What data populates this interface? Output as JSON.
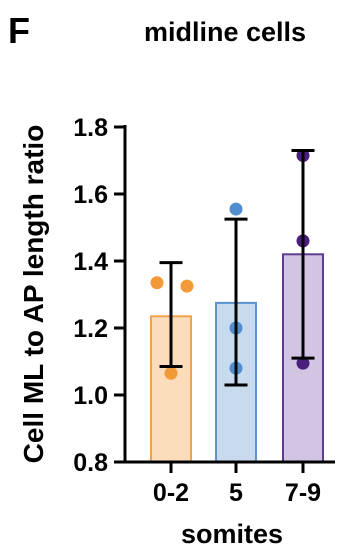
{
  "panel_label": "F",
  "chart_data": {
    "type": "bar",
    "title": "midline cells",
    "xlabel": "somites",
    "ylabel": "Cell ML to AP length ratio",
    "categories": [
      "0-2",
      "5",
      "7-9"
    ],
    "means": [
      1.235,
      1.275,
      1.42
    ],
    "error_bars": [
      {
        "low": 1.085,
        "high": 1.395
      },
      {
        "low": 1.03,
        "high": 1.525
      },
      {
        "low": 1.11,
        "high": 1.73
      }
    ],
    "points": [
      [
        1.335,
        1.325,
        1.065
      ],
      [
        1.555,
        1.2,
        1.08
      ],
      [
        1.715,
        1.46,
        1.095
      ]
    ],
    "ylim": [
      0.8,
      1.8
    ],
    "yticks": [
      "0.8",
      "1.0",
      "1.2",
      "1.4",
      "1.6",
      "1.8"
    ],
    "grid": false,
    "colors": {
      "fills": [
        "#fbdcbb",
        "#c8dbee",
        "#d2c5e3"
      ],
      "strokes": [
        "#f2a24a",
        "#5b93cc",
        "#5e3c92"
      ],
      "points": [
        "#f29a37",
        "#4f8fd0",
        "#4b1f7c"
      ],
      "error_bar": "#000000",
      "axis": "#000000"
    }
  }
}
